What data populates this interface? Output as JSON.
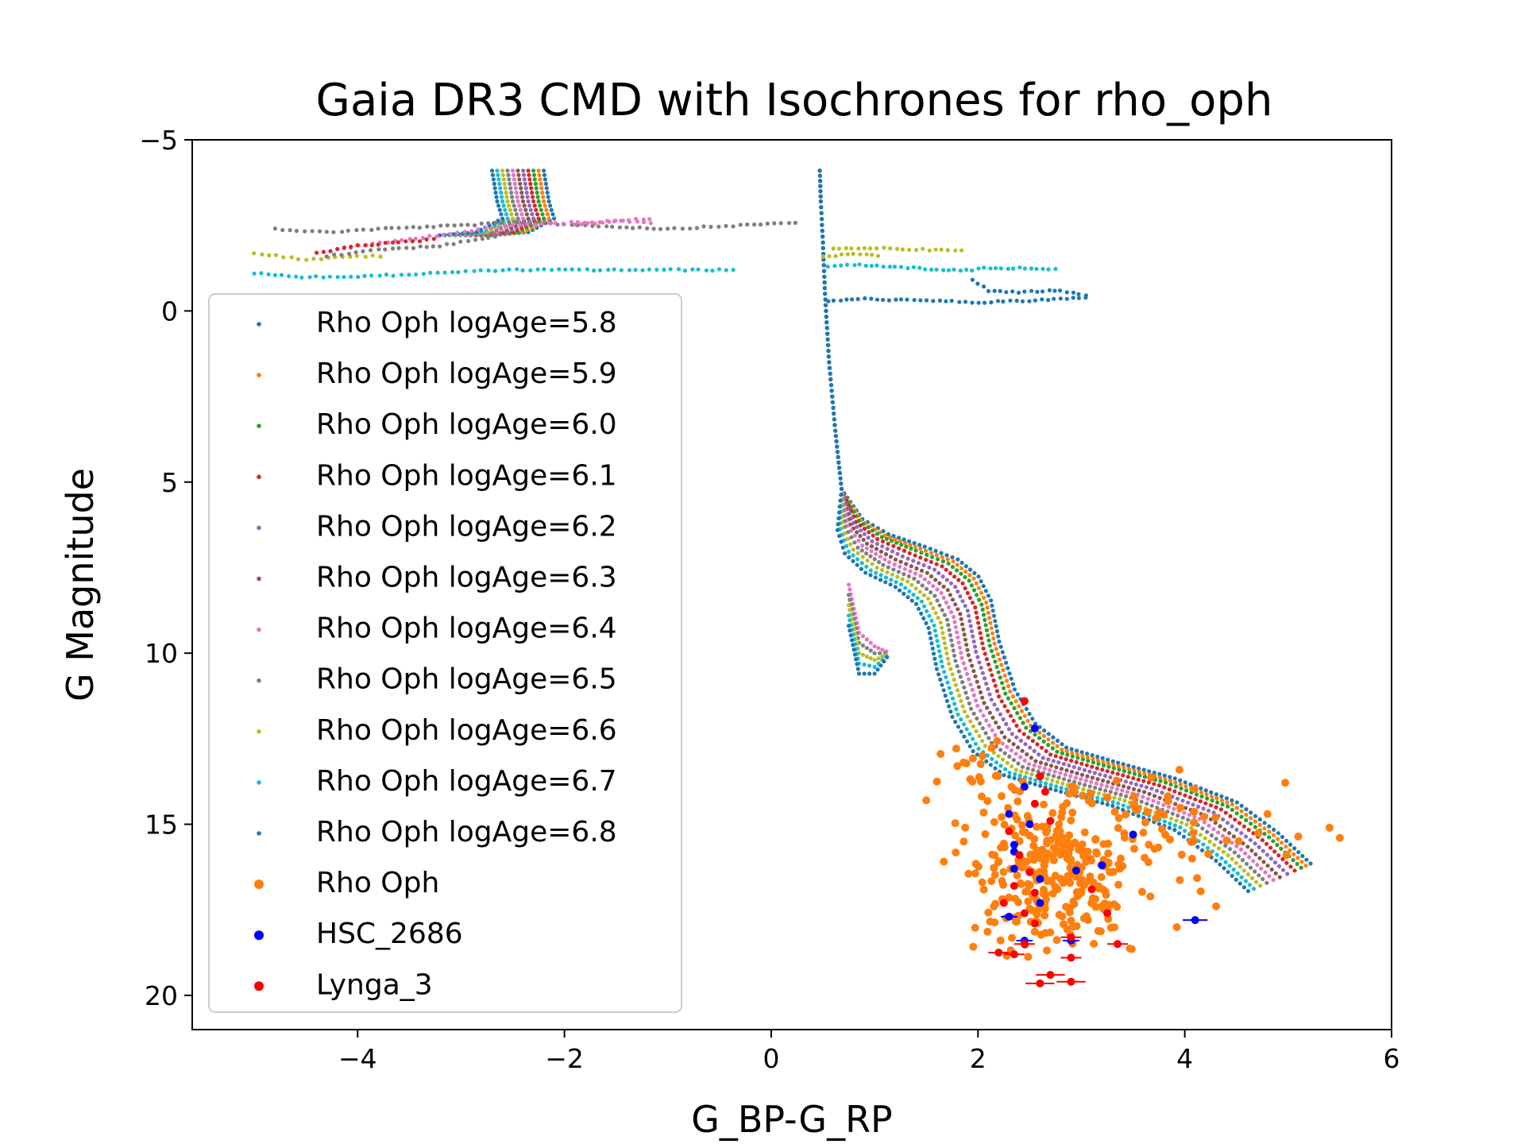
{
  "chart_data": {
    "type": "scatter",
    "title": "Gaia DR3 CMD with Isochrones for rho_oph",
    "xlabel": "G_BP-G_RP",
    "ylabel": "G Magnitude",
    "xlim": [
      -5.6,
      6.0
    ],
    "ylim": [
      21.0,
      -5.0
    ],
    "y_inverted": true,
    "xticks": [
      -4,
      -2,
      0,
      2,
      4,
      6
    ],
    "xtick_labels": [
      "−4",
      "−2",
      "0",
      "2",
      "4",
      "6"
    ],
    "yticks": [
      -5,
      0,
      5,
      10,
      15,
      20
    ],
    "ytick_labels": [
      "−5",
      "0",
      "5",
      "10",
      "15",
      "20"
    ],
    "grid": false,
    "legend_position": "center-left",
    "isochrones": [
      {
        "name": "Rho Oph logAge=5.8",
        "color": "#1f77b4",
        "shift": 0.45
      },
      {
        "name": "Rho Oph logAge=5.9",
        "color": "#ff7f0e",
        "shift": 0.4
      },
      {
        "name": "Rho Oph logAge=6.0",
        "color": "#2ca02c",
        "shift": 0.35
      },
      {
        "name": "Rho Oph logAge=6.1",
        "color": "#d62728",
        "shift": 0.28
      },
      {
        "name": "Rho Oph logAge=6.2",
        "color": "#9467bd",
        "shift": 0.2
      },
      {
        "name": "Rho Oph logAge=6.3",
        "color": "#8c564b",
        "shift": 0.12
      },
      {
        "name": "Rho Oph logAge=6.4",
        "color": "#e377c2",
        "shift": 0.05
      },
      {
        "name": "Rho Oph logAge=6.5",
        "color": "#7f7f7f",
        "shift": -0.02
      },
      {
        "name": "Rho Oph logAge=6.6",
        "color": "#bcbd22",
        "shift": -0.09
      },
      {
        "name": "Rho Oph logAge=6.7",
        "color": "#17becf",
        "shift": -0.16
      },
      {
        "name": "Rho Oph logAge=6.8",
        "color": "#1f77b4",
        "shift": -0.22
      }
    ],
    "isochrone_main_sequence": [
      [
        0.47,
        -4.1
      ],
      [
        0.48,
        -3.2
      ],
      [
        0.5,
        -2.0
      ],
      [
        0.52,
        -0.5
      ],
      [
        0.56,
        1.5
      ],
      [
        0.62,
        3.5
      ],
      [
        0.68,
        5.2
      ],
      [
        0.72,
        6.3
      ],
      [
        0.85,
        6.9
      ],
      [
        1.1,
        7.4
      ],
      [
        1.4,
        7.8
      ],
      [
        1.6,
        8.3
      ],
      [
        1.72,
        9.0
      ],
      [
        1.8,
        10.2
      ],
      [
        1.95,
        11.6
      ],
      [
        2.15,
        12.6
      ],
      [
        2.45,
        13.3
      ],
      [
        2.9,
        13.7
      ],
      [
        3.5,
        14.2
      ],
      [
        4.1,
        14.9
      ],
      [
        4.5,
        15.8
      ],
      [
        4.85,
        16.8
      ]
    ],
    "isochrone_blue_loops": [
      {
        "color": "#7f7f7f",
        "points": [
          [
            -4.8,
            -2.4
          ],
          [
            -4.3,
            -2.3
          ],
          [
            -3.8,
            -2.4
          ],
          [
            -3.0,
            -2.5
          ],
          [
            -2.4,
            -2.6
          ],
          [
            -1.8,
            -2.5
          ],
          [
            -1.0,
            -2.4
          ],
          [
            -0.3,
            -2.5
          ],
          [
            0.3,
            -2.6
          ]
        ]
      },
      {
        "color": "#e377c2",
        "points": [
          [
            -4.2,
            -1.8
          ],
          [
            -3.5,
            -2.1
          ],
          [
            -2.5,
            -2.5
          ],
          [
            -1.8,
            -2.6
          ],
          [
            -1.1,
            -2.7
          ]
        ]
      },
      {
        "color": "#bcbd22",
        "points": [
          [
            -5.0,
            -1.7
          ],
          [
            -4.5,
            -1.5
          ],
          [
            -4.0,
            -1.6
          ],
          [
            -3.7,
            -1.6
          ]
        ]
      },
      {
        "color": "#17becf",
        "points": [
          [
            -5.0,
            -1.1
          ],
          [
            -4.6,
            -1.0
          ],
          [
            -4.0,
            -1.0
          ],
          [
            -3.3,
            -1.1
          ],
          [
            -2.6,
            -1.2
          ],
          [
            -0.9,
            -1.2
          ],
          [
            -0.3,
            -1.2
          ]
        ]
      },
      {
        "color": "#7f7f7f",
        "points": [
          [
            -4.3,
            -1.6
          ],
          [
            -3.8,
            -1.8
          ],
          [
            -3.2,
            -1.9
          ],
          [
            -2.6,
            -2.2
          ]
        ]
      },
      {
        "color": "#d62728",
        "points": [
          [
            -4.4,
            -1.7
          ],
          [
            -4.0,
            -1.9
          ],
          [
            -3.6,
            -2.0
          ],
          [
            -3.2,
            -2.1
          ]
        ]
      },
      {
        "color": "#e377c2",
        "points": [
          [
            -1.9,
            -2.5
          ],
          [
            -1.5,
            -2.65
          ],
          [
            -1.1,
            -2.55
          ]
        ]
      }
    ],
    "isochrone_red_loops": [
      {
        "color": "#bcbd22",
        "points": [
          [
            0.6,
            -1.8
          ],
          [
            0.9,
            -1.85
          ],
          [
            1.4,
            -1.8
          ],
          [
            1.9,
            -1.75
          ]
        ]
      },
      {
        "color": "#17becf",
        "points": [
          [
            0.55,
            -1.3
          ],
          [
            0.8,
            -1.35
          ],
          [
            1.2,
            -1.3
          ],
          [
            1.6,
            -1.2
          ],
          [
            2.0,
            -1.2
          ]
        ]
      },
      {
        "color": "#17becf",
        "points": [
          [
            2.0,
            -1.25
          ],
          [
            2.4,
            -1.25
          ],
          [
            2.8,
            -1.2
          ]
        ]
      },
      {
        "color": "#1f77b4",
        "points": [
          [
            0.55,
            -0.3
          ],
          [
            0.9,
            -0.35
          ],
          [
            1.5,
            -0.3
          ],
          [
            2.0,
            -0.25
          ],
          [
            2.5,
            -0.3
          ],
          [
            3.1,
            -0.4
          ]
        ]
      },
      {
        "color": "#1f77b4",
        "points": [
          [
            1.95,
            -0.9
          ],
          [
            2.1,
            -0.6
          ],
          [
            2.4,
            -0.55
          ],
          [
            2.8,
            -0.6
          ],
          [
            3.1,
            -0.4
          ]
        ]
      },
      {
        "color": "#bcbd22",
        "points": [
          [
            0.5,
            -1.6
          ],
          [
            0.8,
            -1.65
          ],
          [
            1.1,
            -1.6
          ]
        ]
      }
    ],
    "scatter_series": [
      {
        "name": "Rho Oph",
        "color": "#ff7f0e"
      },
      {
        "name": "HSC_2686",
        "color": "#0000ff"
      },
      {
        "name": "Lynga_3",
        "color": "#ff0000"
      }
    ],
    "hsc_2686_points": [
      [
        2.55,
        12.2
      ],
      [
        2.45,
        13.9
      ],
      [
        2.3,
        14.7
      ],
      [
        2.5,
        15.0
      ],
      [
        2.35,
        15.6
      ],
      [
        2.35,
        15.8
      ],
      [
        2.35,
        16.3
      ],
      [
        2.6,
        16.6
      ],
      [
        2.95,
        16.35
      ],
      [
        3.2,
        16.2
      ],
      [
        3.5,
        15.3
      ],
      [
        2.6,
        17.3
      ],
      [
        2.3,
        17.7
      ],
      [
        2.45,
        18.4
      ],
      [
        2.9,
        18.4
      ],
      [
        4.1,
        17.8
      ]
    ],
    "lynga_3_points": [
      [
        2.45,
        11.4
      ],
      [
        2.6,
        13.6
      ],
      [
        2.65,
        14.05
      ],
      [
        2.55,
        14.4
      ],
      [
        2.7,
        14.9
      ],
      [
        2.3,
        15.2
      ],
      [
        2.4,
        15.9
      ],
      [
        2.5,
        16.4
      ],
      [
        2.35,
        16.8
      ],
      [
        2.55,
        17.0
      ],
      [
        2.25,
        17.3
      ],
      [
        2.45,
        17.6
      ],
      [
        2.55,
        17.9
      ],
      [
        2.9,
        18.3
      ],
      [
        3.25,
        17.6
      ],
      [
        2.45,
        18.5
      ],
      [
        2.2,
        18.75
      ],
      [
        2.35,
        18.8
      ],
      [
        2.9,
        18.9
      ],
      [
        3.35,
        18.5
      ],
      [
        2.7,
        19.4
      ],
      [
        2.6,
        19.65
      ],
      [
        2.9,
        19.6
      ],
      [
        3.1,
        16.9
      ]
    ]
  }
}
